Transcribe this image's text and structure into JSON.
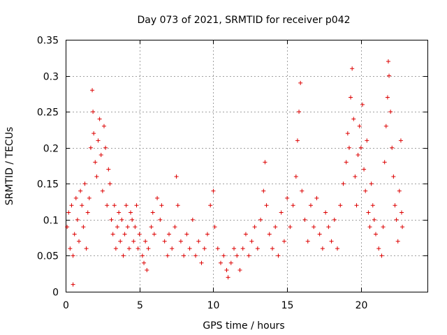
{
  "chart_data": {
    "type": "scatter",
    "title": "Day 073 of 2021, SRMTID for receiver p042",
    "xlabel": "GPS time / hours",
    "ylabel": "SRMTID / TECUs",
    "xlim": [
      0,
      24.5
    ],
    "ylim": [
      0,
      0.35
    ],
    "grid": true,
    "marker": "+",
    "series_color": "#dd0000",
    "x_ticks": [
      {
        "value": 0,
        "label": "0"
      },
      {
        "value": 5,
        "label": "5"
      },
      {
        "value": 10,
        "label": "10"
      },
      {
        "value": 15,
        "label": "15"
      },
      {
        "value": 20,
        "label": "20"
      }
    ],
    "y_ticks": [
      {
        "value": 0,
        "label": "0"
      },
      {
        "value": 0.05,
        "label": "0.05"
      },
      {
        "value": 0.1,
        "label": "0.1"
      },
      {
        "value": 0.15,
        "label": "0.15"
      },
      {
        "value": 0.2,
        "label": "0.2"
      },
      {
        "value": 0.25,
        "label": "0.25"
      },
      {
        "value": 0.3,
        "label": "0.3"
      },
      {
        "value": 0.35,
        "label": "0.35"
      }
    ],
    "series": [
      {
        "name": "SRMTID",
        "points": [
          [
            0.1,
            0.09
          ],
          [
            0.2,
            0.11
          ],
          [
            0.3,
            0.06
          ],
          [
            0.4,
            0.12
          ],
          [
            0.5,
            0.05
          ],
          [
            0.5,
            0.01
          ],
          [
            0.6,
            0.08
          ],
          [
            0.7,
            0.13
          ],
          [
            0.8,
            0.1
          ],
          [
            0.9,
            0.07
          ],
          [
            1.0,
            0.14
          ],
          [
            1.1,
            0.12
          ],
          [
            1.2,
            0.09
          ],
          [
            1.3,
            0.15
          ],
          [
            1.4,
            0.06
          ],
          [
            1.5,
            0.11
          ],
          [
            1.6,
            0.13
          ],
          [
            1.7,
            0.2
          ],
          [
            1.8,
            0.28
          ],
          [
            1.85,
            0.25
          ],
          [
            1.9,
            0.22
          ],
          [
            2.0,
            0.18
          ],
          [
            2.1,
            0.16
          ],
          [
            2.2,
            0.21
          ],
          [
            2.3,
            0.24
          ],
          [
            2.4,
            0.19
          ],
          [
            2.5,
            0.14
          ],
          [
            2.6,
            0.23
          ],
          [
            2.7,
            0.2
          ],
          [
            2.8,
            0.12
          ],
          [
            2.9,
            0.17
          ],
          [
            3.0,
            0.15
          ],
          [
            3.1,
            0.1
          ],
          [
            3.2,
            0.08
          ],
          [
            3.3,
            0.12
          ],
          [
            3.4,
            0.06
          ],
          [
            3.5,
            0.09
          ],
          [
            3.6,
            0.11
          ],
          [
            3.7,
            0.07
          ],
          [
            3.8,
            0.1
          ],
          [
            3.9,
            0.05
          ],
          [
            4.0,
            0.08
          ],
          [
            4.1,
            0.12
          ],
          [
            4.2,
            0.09
          ],
          [
            4.3,
            0.06
          ],
          [
            4.4,
            0.11
          ],
          [
            4.5,
            0.1
          ],
          [
            4.6,
            0.07
          ],
          [
            4.7,
            0.09
          ],
          [
            4.8,
            0.12
          ],
          [
            4.9,
            0.06
          ],
          [
            5.0,
            0.08
          ],
          [
            5.2,
            0.05
          ],
          [
            5.3,
            0.04
          ],
          [
            5.4,
            0.07
          ],
          [
            5.5,
            0.03
          ],
          [
            5.6,
            0.06
          ],
          [
            5.8,
            0.09
          ],
          [
            5.9,
            0.11
          ],
          [
            6.0,
            0.08
          ],
          [
            6.2,
            0.13
          ],
          [
            6.4,
            0.1
          ],
          [
            6.5,
            0.12
          ],
          [
            6.7,
            0.07
          ],
          [
            6.9,
            0.05
          ],
          [
            7.0,
            0.08
          ],
          [
            7.2,
            0.06
          ],
          [
            7.4,
            0.09
          ],
          [
            7.5,
            0.16
          ],
          [
            7.6,
            0.12
          ],
          [
            7.8,
            0.07
          ],
          [
            8.0,
            0.05
          ],
          [
            8.2,
            0.08
          ],
          [
            8.4,
            0.06
          ],
          [
            8.6,
            0.1
          ],
          [
            8.8,
            0.05
          ],
          [
            9.0,
            0.07
          ],
          [
            9.2,
            0.04
          ],
          [
            9.4,
            0.06
          ],
          [
            9.6,
            0.08
          ],
          [
            9.8,
            0.12
          ],
          [
            10.0,
            0.14
          ],
          [
            10.1,
            0.09
          ],
          [
            10.3,
            0.06
          ],
          [
            10.5,
            0.04
          ],
          [
            10.7,
            0.05
          ],
          [
            10.9,
            0.03
          ],
          [
            11.0,
            0.02
          ],
          [
            11.2,
            0.04
          ],
          [
            11.4,
            0.06
          ],
          [
            11.6,
            0.05
          ],
          [
            11.8,
            0.03
          ],
          [
            12.0,
            0.06
          ],
          [
            12.2,
            0.08
          ],
          [
            12.4,
            0.05
          ],
          [
            12.6,
            0.07
          ],
          [
            12.8,
            0.09
          ],
          [
            13.0,
            0.06
          ],
          [
            13.2,
            0.1
          ],
          [
            13.4,
            0.14
          ],
          [
            13.5,
            0.18
          ],
          [
            13.6,
            0.12
          ],
          [
            13.8,
            0.08
          ],
          [
            14.0,
            0.06
          ],
          [
            14.2,
            0.09
          ],
          [
            14.4,
            0.05
          ],
          [
            14.6,
            0.11
          ],
          [
            14.8,
            0.07
          ],
          [
            15.0,
            0.13
          ],
          [
            15.2,
            0.09
          ],
          [
            15.4,
            0.12
          ],
          [
            15.6,
            0.16
          ],
          [
            15.7,
            0.21
          ],
          [
            15.8,
            0.25
          ],
          [
            15.9,
            0.29
          ],
          [
            16.0,
            0.14
          ],
          [
            16.2,
            0.1
          ],
          [
            16.4,
            0.07
          ],
          [
            16.6,
            0.12
          ],
          [
            16.8,
            0.09
          ],
          [
            17.0,
            0.13
          ],
          [
            17.2,
            0.08
          ],
          [
            17.4,
            0.06
          ],
          [
            17.6,
            0.11
          ],
          [
            17.8,
            0.09
          ],
          [
            18.0,
            0.07
          ],
          [
            18.2,
            0.1
          ],
          [
            18.4,
            0.06
          ],
          [
            18.6,
            0.12
          ],
          [
            18.8,
            0.15
          ],
          [
            19.0,
            0.18
          ],
          [
            19.1,
            0.22
          ],
          [
            19.2,
            0.2
          ],
          [
            19.3,
            0.27
          ],
          [
            19.4,
            0.31
          ],
          [
            19.5,
            0.24
          ],
          [
            19.6,
            0.16
          ],
          [
            19.7,
            0.12
          ],
          [
            19.8,
            0.19
          ],
          [
            19.9,
            0.23
          ],
          [
            20.0,
            0.2
          ],
          [
            20.1,
            0.26
          ],
          [
            20.2,
            0.17
          ],
          [
            20.3,
            0.14
          ],
          [
            20.4,
            0.21
          ],
          [
            20.5,
            0.11
          ],
          [
            20.6,
            0.09
          ],
          [
            20.7,
            0.15
          ],
          [
            20.8,
            0.12
          ],
          [
            20.9,
            0.1
          ],
          [
            21.0,
            0.08
          ],
          [
            21.2,
            0.06
          ],
          [
            21.4,
            0.05
          ],
          [
            21.5,
            0.09
          ],
          [
            21.6,
            0.18
          ],
          [
            21.7,
            0.23
          ],
          [
            21.8,
            0.27
          ],
          [
            21.85,
            0.32
          ],
          [
            21.9,
            0.3
          ],
          [
            22.0,
            0.25
          ],
          [
            22.1,
            0.2
          ],
          [
            22.2,
            0.16
          ],
          [
            22.3,
            0.12
          ],
          [
            22.4,
            0.1
          ],
          [
            22.5,
            0.07
          ],
          [
            22.6,
            0.14
          ],
          [
            22.7,
            0.21
          ],
          [
            22.75,
            0.11
          ],
          [
            22.8,
            0.09
          ]
        ]
      }
    ]
  }
}
